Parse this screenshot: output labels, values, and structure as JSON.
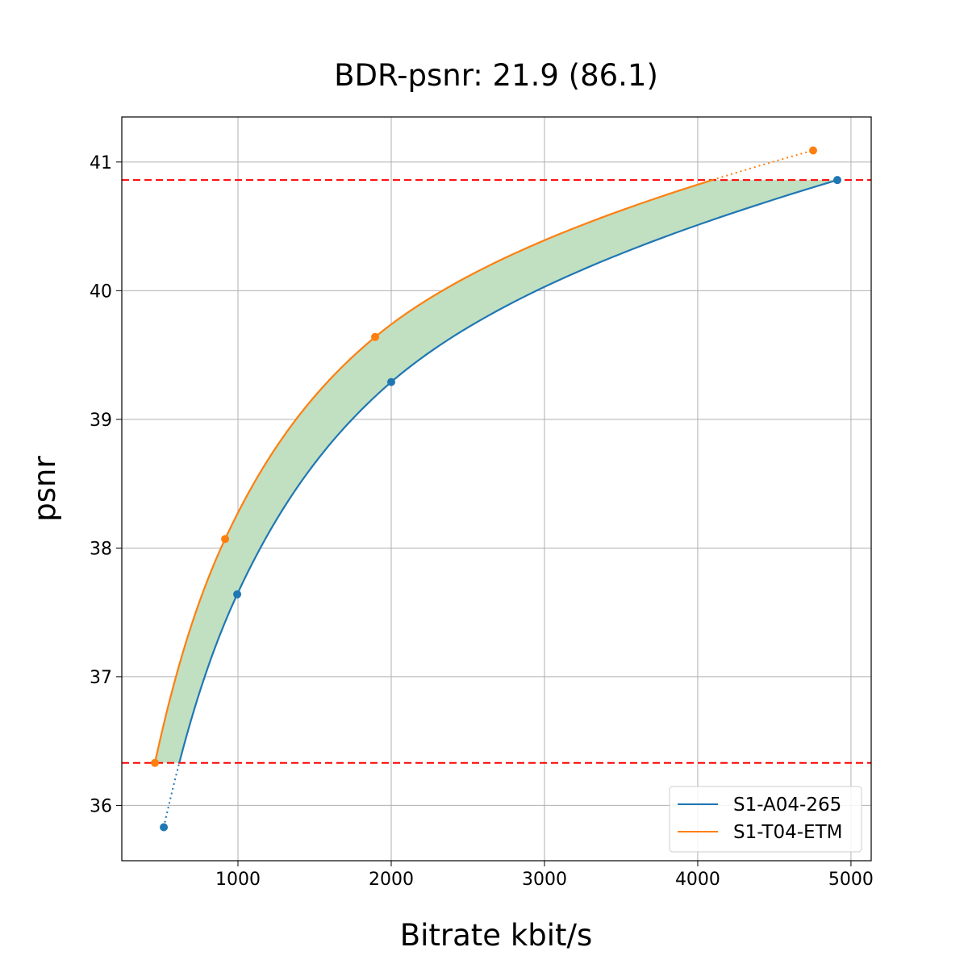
{
  "chart_data": {
    "type": "line",
    "title": "BDR-psnr: 21.9 (86.1)",
    "xlabel": "Bitrate kbit/s",
    "ylabel": "psnr",
    "xlim": [
      242,
      5132
    ],
    "ylim": [
      35.57,
      41.35
    ],
    "xticks": [
      1000,
      2000,
      3000,
      4000,
      5000
    ],
    "yticks": [
      36,
      37,
      38,
      39,
      40,
      41
    ],
    "grid": true,
    "legend_position": "bottom-right",
    "series": [
      {
        "name": "S1-A04-265",
        "color": "#1f77b4",
        "x": [
          516,
          995,
          2000,
          4911
        ],
        "y": [
          35.83,
          37.64,
          39.29,
          40.86
        ]
      },
      {
        "name": "S1-T04-ETM",
        "color": "#ff7f0e",
        "x": [
          458,
          916,
          1895,
          4753
        ],
        "y": [
          36.33,
          38.07,
          39.64,
          41.09
        ]
      }
    ],
    "reference_lines": [
      {
        "orientation": "horizontal",
        "y": 40.86,
        "color": "#ff0000",
        "style": "dashed"
      },
      {
        "orientation": "horizontal",
        "y": 36.33,
        "color": "#ff0000",
        "style": "dashed"
      }
    ],
    "fill_between": {
      "color": "#c1dfc1",
      "y_range": [
        36.33,
        40.86
      ]
    }
  }
}
